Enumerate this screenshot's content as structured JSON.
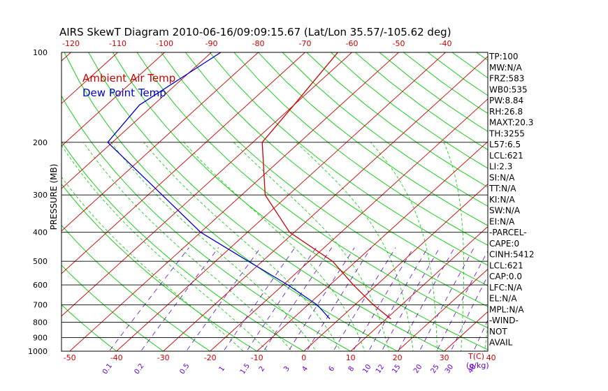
{
  "chart_data": {
    "type": "line",
    "title": "AIRS SkewT Diagram 2010-06-16/09:09:15.67 (Lat/Lon 35.57/-105.62 deg)",
    "ylabel": "PRESSURE (MB)",
    "y_scale": "log",
    "ylim": [
      1000,
      100
    ],
    "x_unit_label": "T(C)",
    "mixing_ratio_unit_label": "(g/kg)",
    "grid": true,
    "legend": [
      "Ambient Air Temp",
      "Dew Point Temp"
    ],
    "legend_position": "top-left",
    "colors": {
      "temperature": "#cc0000",
      "dewpoint": "#0000cc",
      "isotherm": "#cc0000",
      "dry_adiabat": "#00cc00",
      "mixing_ratio": "#6600cc",
      "moist_adiabat": "#00cc00"
    },
    "pressure_ticks": [
      "100",
      "200",
      "300",
      "400",
      "500",
      "600",
      "700",
      "800",
      "900",
      "1000"
    ],
    "bottom_temp_ticks": [
      "-50",
      "-40",
      "-30",
      "-20",
      "-10",
      "0",
      "10",
      "20",
      "30",
      "40"
    ],
    "top_temp_ticks": [
      "-120",
      "-110",
      "-100",
      "-90",
      "-80",
      "-70",
      "-60",
      "-50",
      "-40"
    ],
    "mixing_ratio_ticks": [
      "0.1",
      "0.2",
      "0.5",
      "1",
      "1.5",
      "2",
      "3",
      "4",
      "6",
      "8",
      "10",
      "12",
      "15",
      "20",
      "25",
      "30",
      "40"
    ],
    "series": [
      {
        "name": "Ambient Air Temp",
        "pressure": [
          100,
          150,
          200,
          300,
          400,
          500,
          600,
          700,
          780
        ],
        "temperature": [
          -63,
          -60,
          -58,
          -45,
          -31,
          -15,
          -5,
          4,
          11
        ]
      },
      {
        "name": "Dew Point Temp",
        "pressure": [
          100,
          150,
          200,
          300,
          400,
          500,
          600,
          700,
          780
        ],
        "temperature": [
          -88,
          -93,
          -91,
          -67,
          -50,
          -33,
          -19,
          -8,
          -2
        ]
      }
    ],
    "indices": [
      "TP:100",
      "MW:N/A",
      "FRZ:583",
      "WB0:535",
      "PW:8.84",
      "RH:26.8",
      "MAXT:20.3",
      "TH:3255",
      "L57:6.5",
      "LCL:621",
      "LI:2.3",
      "SI:N/A",
      "TT:N/A",
      "KI:N/A",
      "SW:N/A",
      "EI:N/A",
      "-PARCEL-",
      "CAPE:0",
      "CINH:5412",
      "LCL:621",
      "CAP:0.0",
      "LFC:N/A",
      "EL:N/A",
      "MPL:N/A",
      "-WIND-",
      "NOT",
      "AVAIL"
    ]
  }
}
